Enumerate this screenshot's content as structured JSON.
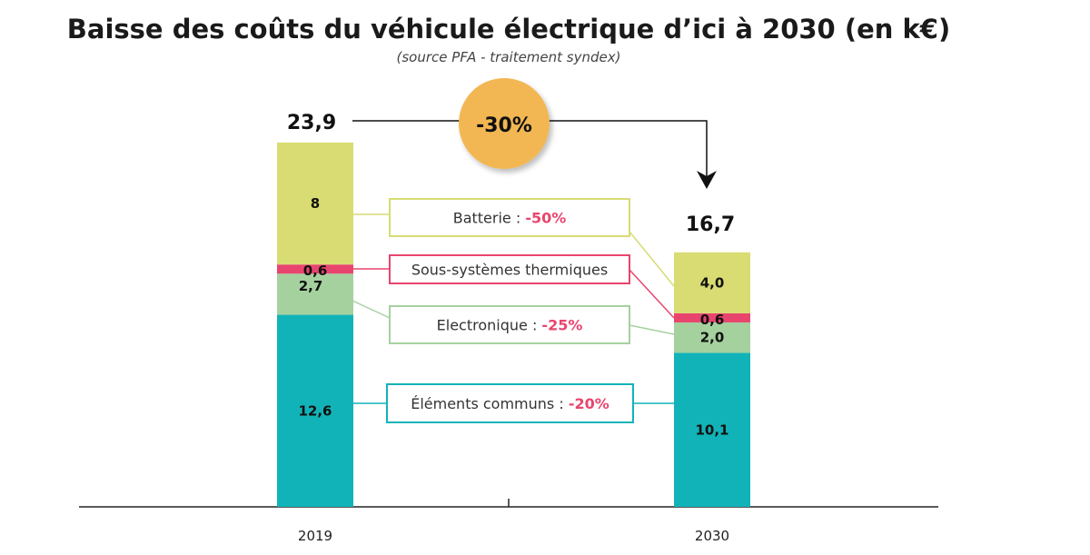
{
  "chart_data": {
    "type": "bar",
    "stacked": true,
    "title": "Baisse des coûts du véhicule électrique d’ici à 2030 (en k€)",
    "subtitle": "(source PFA - traitement syndex)",
    "categories": [
      "2019",
      "2030"
    ],
    "totals": [
      "23,9",
      "16,7"
    ],
    "total_values": [
      23.9,
      16.7
    ],
    "change_badge": "-30%",
    "badge_color": "#f2b752",
    "series": [
      {
        "name": "Éléments communs : ",
        "change": "-20%",
        "values": [
          12.6,
          10.1
        ],
        "labels": [
          "12,6",
          "10,1"
        ],
        "color": "#12b3b8"
      },
      {
        "name": "Electronique : ",
        "change": "-25%",
        "values": [
          2.7,
          2.0
        ],
        "labels": [
          "2,7",
          "2,0"
        ],
        "color": "#a5d19f"
      },
      {
        "name": "Sous-systèmes thermiques",
        "change": "",
        "values": [
          0.6,
          0.6
        ],
        "labels": [
          "0,6",
          "0,6"
        ],
        "color": "#e8456e"
      },
      {
        "name": "Batterie : ",
        "change": "-50%",
        "values": [
          8,
          4.0
        ],
        "labels": [
          "8",
          "4,0"
        ],
        "color": "#d8dc72"
      }
    ],
    "highlight_color": "#e8456e",
    "grid": false
  }
}
